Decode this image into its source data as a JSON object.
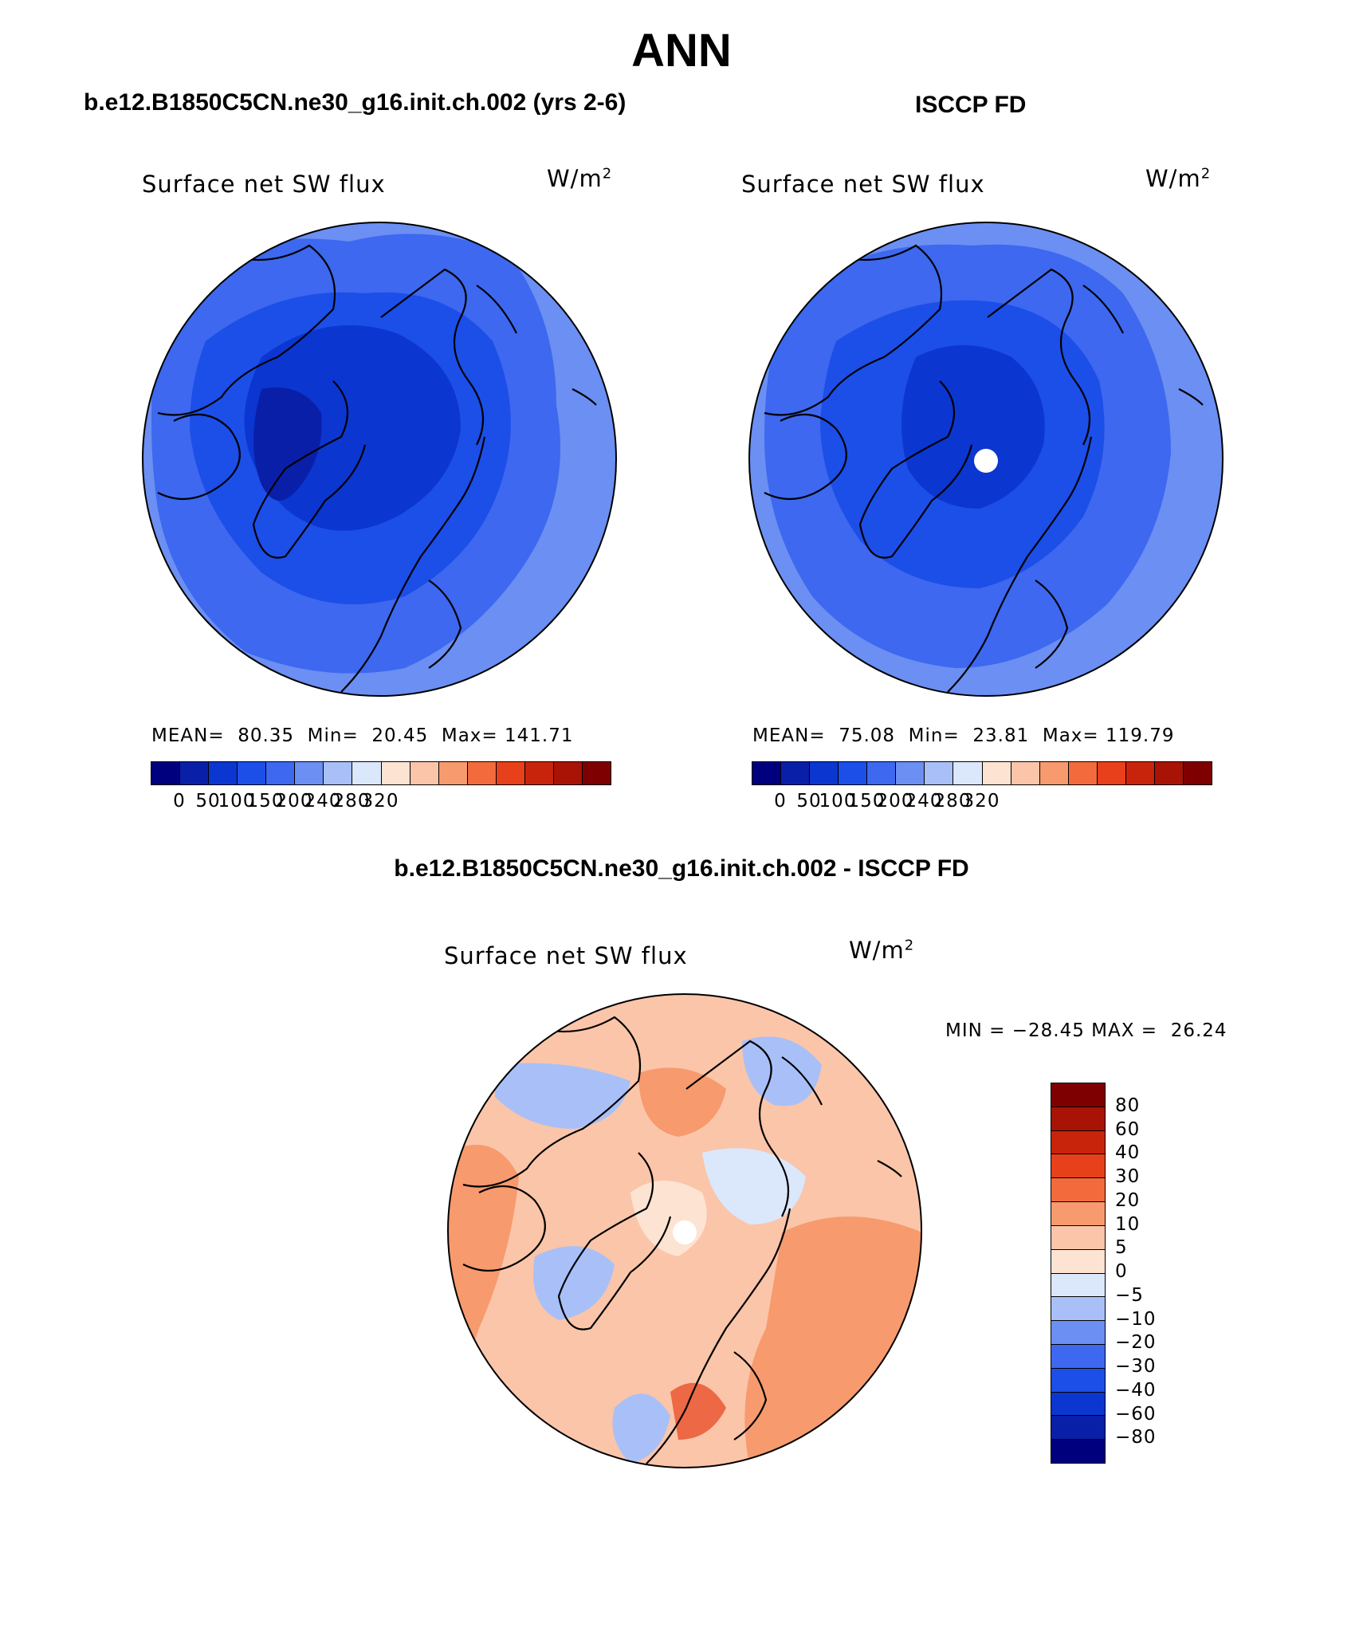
{
  "header": {
    "title": "ANN",
    "case1_label": "b.e12.B1850C5CN.ne30_g16.init.ch.002 (yrs 2-6)",
    "case2_label": "ISCCP FD",
    "diff_label": "b.e12.B1850C5CN.ne30_g16.init.ch.002 - ISCCP FD"
  },
  "panels": {
    "model": {
      "title": "Surface net SW flux",
      "units": "W/m",
      "units_sup": "2",
      "stats": "MEAN=  80.35  Min=  20.45  Max= 141.71"
    },
    "obs": {
      "title": "Surface net SW flux",
      "units": "W/m",
      "units_sup": "2",
      "stats": "MEAN=  75.08  Min=  23.81  Max= 119.79"
    },
    "diff": {
      "title": "Surface net SW flux",
      "units": "W/m",
      "units_sup": "2",
      "stats": "MIN = −28.45 MAX =  26.24"
    }
  },
  "colorbars": {
    "abs_ticks": [
      "0",
      "50",
      "100",
      "150",
      "200",
      "240",
      "280",
      "320"
    ],
    "abs_colors": [
      "#00007f",
      "#0a1fa8",
      "#0b36d0",
      "#1c4ee8",
      "#3d68ef",
      "#6b8ff2",
      "#a8c0f7",
      "#dbe7fb",
      "#fde3d2",
      "#fbc5a9",
      "#f79a6e",
      "#f36b3c",
      "#e7401a",
      "#c8240c",
      "#a81305",
      "#7f0000"
    ],
    "diff_ticks": [
      "80",
      "60",
      "40",
      "30",
      "20",
      "10",
      "5",
      "0",
      "−5",
      "−10",
      "−20",
      "−30",
      "−40",
      "−60",
      "−80"
    ],
    "diff_colors": [
      "#7f0000",
      "#a81305",
      "#c8240c",
      "#e7401a",
      "#f36b3c",
      "#f79a6e",
      "#fbc5a9",
      "#fde3d2",
      "#dbe7fb",
      "#a8c0f7",
      "#6b8ff2",
      "#3d68ef",
      "#1c4ee8",
      "#0b36d0",
      "#0a1fa8",
      "#00007f"
    ]
  },
  "colors": {
    "outer_model": "#6b8ff2",
    "mid_model": "#3d68ef",
    "inner_model": "#1c4ee8",
    "core_model": "#0b36d0",
    "diff_base": "#fbc5a9",
    "diff_warm": "#f79a6e",
    "diff_cool": "#a8c0f7",
    "diff_pale": "#dbe7fb"
  }
}
